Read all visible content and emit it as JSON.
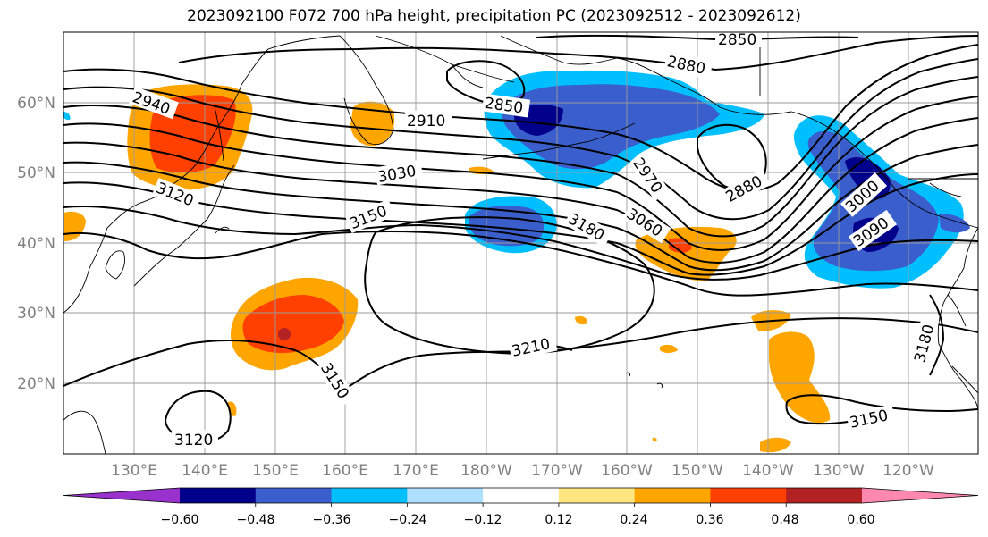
{
  "title": "2023092100 F072 700 hPa height, precipitation PC (2023092512 - 2023092612)",
  "map": {
    "lat_labels": [
      "60°N",
      "50°N",
      "40°N",
      "30°N",
      "20°N"
    ],
    "lon_labels": [
      "130°E",
      "140°E",
      "150°E",
      "160°E",
      "170°E",
      "180°W",
      "170°W",
      "160°W",
      "150°W",
      "140°W",
      "130°W",
      "120°W"
    ],
    "height_contour_labels": [
      "2850",
      "2880",
      "2940",
      "2910",
      "2850",
      "3030",
      "2970",
      "2880",
      "3120",
      "3150",
      "3060",
      "3000",
      "3180",
      "3090",
      "3210",
      "3150",
      "3180",
      "3120",
      "3150"
    ],
    "height_contour_values": [
      2850,
      2880,
      2910,
      2940,
      2970,
      3000,
      3030,
      3060,
      3090,
      3120,
      3150,
      3180,
      3210
    ]
  },
  "colorbar": {
    "colors": [
      "#9932cc",
      "#00008b",
      "#3a5fcd",
      "#00bfff",
      "#b0e0ff",
      "#ffffff",
      "#ffe680",
      "#ffa500",
      "#ff4000",
      "#b22222",
      "#ff88b0"
    ],
    "tick_labels": [
      "−0.60",
      "−0.48",
      "−0.36",
      "−0.24",
      "−0.12",
      "0.12",
      "0.24",
      "0.36",
      "0.48",
      "0.60"
    ],
    "tick_values": [
      -0.6,
      -0.48,
      -0.36,
      -0.24,
      -0.12,
      0.12,
      0.24,
      0.36,
      0.48,
      0.6
    ]
  }
}
